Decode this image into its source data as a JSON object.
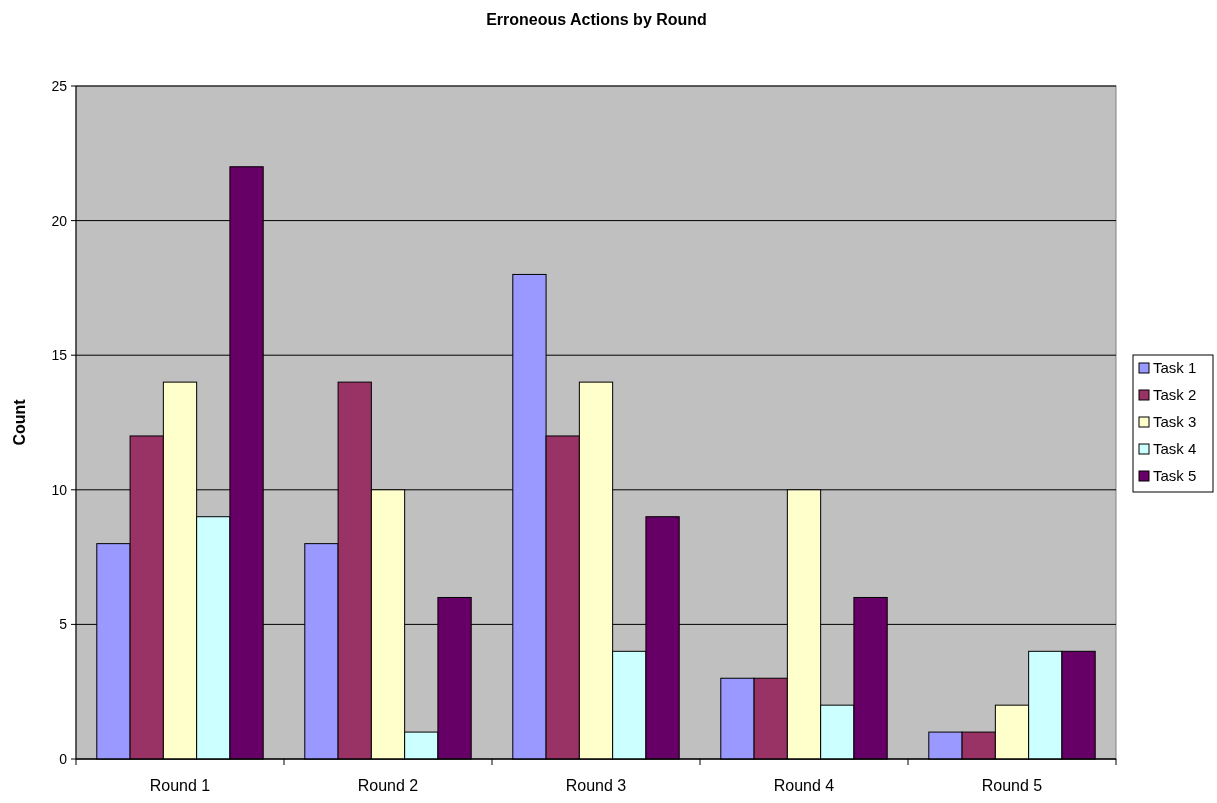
{
  "chart_data": {
    "type": "bar",
    "title": "Erroneous Actions by Round",
    "ylabel": "Count",
    "categories": [
      "Round 1",
      "Round 2",
      "Round 3",
      "Round 4",
      "Round 5"
    ],
    "series": [
      {
        "name": "Task 1",
        "color": "#9999ff",
        "values": [
          8,
          8,
          18,
          3,
          1
        ]
      },
      {
        "name": "Task 2",
        "color": "#993366",
        "values": [
          12,
          14,
          12,
          3,
          1
        ]
      },
      {
        "name": "Task 3",
        "color": "#ffffcc",
        "values": [
          14,
          10,
          14,
          10,
          2
        ]
      },
      {
        "name": "Task 4",
        "color": "#ccffff",
        "values": [
          9,
          1,
          4,
          2,
          4
        ]
      },
      {
        "name": "Task 5",
        "color": "#660066",
        "values": [
          22,
          6,
          9,
          6,
          4
        ]
      }
    ],
    "ylim": [
      0,
      25
    ],
    "yticks": [
      0,
      5,
      10,
      15,
      20,
      25
    ],
    "grid": "y",
    "legend": "right"
  }
}
